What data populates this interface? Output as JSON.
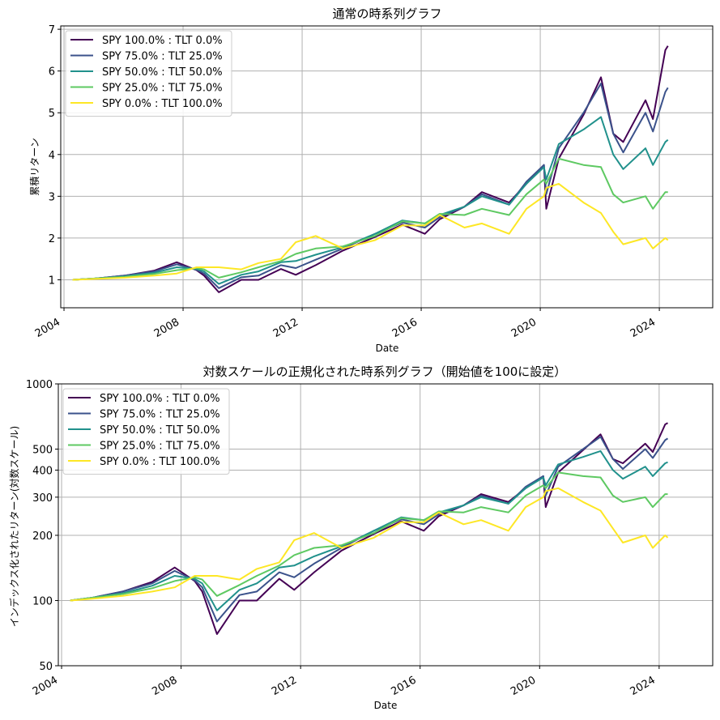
{
  "colors": {
    "series": [
      "#440154",
      "#3b528b",
      "#21918c",
      "#5ec962",
      "#fde725"
    ],
    "grid": "#b0b0b0",
    "axis": "#000000",
    "background": "#ffffff"
  },
  "chart_data": [
    {
      "type": "line",
      "title": "通常の時系列グラフ",
      "xlabel": "Date",
      "ylabel": "累積リターン",
      "xlim": [
        "2003-11-22",
        "2025-10-17"
      ],
      "ylim": [
        0.33,
        7.08
      ],
      "xticks": [
        "2004",
        "2008",
        "2012",
        "2016",
        "2020",
        "2024"
      ],
      "yticks": [
        "1",
        "2",
        "3",
        "4",
        "5",
        "6",
        "7"
      ],
      "yscale": "linear",
      "grid": true,
      "legend_loc": "upper left",
      "x": [
        "2004-04",
        "2005-01",
        "2006-01",
        "2007-01",
        "2007-10",
        "2008-06",
        "2008-09",
        "2009-03",
        "2009-12",
        "2010-07",
        "2011-04",
        "2011-10",
        "2012-06",
        "2013-05",
        "2014-06",
        "2015-05",
        "2016-02",
        "2016-08",
        "2017-06",
        "2018-01",
        "2018-12",
        "2019-07",
        "2020-02",
        "2020-03",
        "2020-08",
        "2021-06",
        "2022-01",
        "2022-06",
        "2022-10",
        "2023-07",
        "2023-10",
        "2024-03",
        "2024-04"
      ],
      "series": [
        {
          "name": "SPY 100.0% : TLT 0.0%",
          "values": [
            1.0,
            1.03,
            1.1,
            1.22,
            1.42,
            1.23,
            1.1,
            0.7,
            1.0,
            1.0,
            1.26,
            1.12,
            1.35,
            1.7,
            2.03,
            2.32,
            2.1,
            2.45,
            2.75,
            3.1,
            2.85,
            3.3,
            3.75,
            2.7,
            3.9,
            4.95,
            5.85,
            4.5,
            4.3,
            5.3,
            4.85,
            6.5,
            6.6
          ]
        },
        {
          "name": "SPY 75.0% : TLT 25.0%",
          "values": [
            1.0,
            1.03,
            1.1,
            1.2,
            1.37,
            1.24,
            1.15,
            0.8,
            1.06,
            1.1,
            1.35,
            1.28,
            1.48,
            1.75,
            2.1,
            2.37,
            2.25,
            2.5,
            2.75,
            3.05,
            2.8,
            3.35,
            3.75,
            3.05,
            4.15,
            5.0,
            5.7,
            4.5,
            4.05,
            5.0,
            4.55,
            5.5,
            5.6
          ]
        },
        {
          "name": "SPY 50.0% : TLT 50.0%",
          "values": [
            1.0,
            1.03,
            1.08,
            1.17,
            1.3,
            1.26,
            1.2,
            0.9,
            1.12,
            1.2,
            1.42,
            1.45,
            1.6,
            1.78,
            2.1,
            2.42,
            2.35,
            2.55,
            2.75,
            3.0,
            2.8,
            3.3,
            3.7,
            3.4,
            4.25,
            4.6,
            4.9,
            4.0,
            3.65,
            4.15,
            3.75,
            4.3,
            4.35
          ]
        },
        {
          "name": "SPY 25.0% : TLT 75.0%",
          "values": [
            1.0,
            1.03,
            1.07,
            1.14,
            1.23,
            1.28,
            1.25,
            1.05,
            1.18,
            1.3,
            1.45,
            1.62,
            1.75,
            1.8,
            2.05,
            2.4,
            2.35,
            2.58,
            2.55,
            2.7,
            2.55,
            3.05,
            3.4,
            3.3,
            3.9,
            3.75,
            3.7,
            3.05,
            2.85,
            3.0,
            2.7,
            3.1,
            3.1
          ]
        },
        {
          "name": "SPY 0.0% : TLT 100.0%",
          "values": [
            1.0,
            1.02,
            1.05,
            1.1,
            1.15,
            1.3,
            1.3,
            1.3,
            1.25,
            1.4,
            1.5,
            1.9,
            2.05,
            1.75,
            1.95,
            2.3,
            2.3,
            2.55,
            2.25,
            2.35,
            2.1,
            2.7,
            3.0,
            3.2,
            3.3,
            2.85,
            2.6,
            2.15,
            1.85,
            2.0,
            1.75,
            2.0,
            1.95
          ]
        }
      ]
    },
    {
      "type": "line",
      "title": "対数スケールの正規化された時系列グラフ（開始値を100に設定）",
      "xlabel": "Date",
      "ylabel": "インデックス化されたリターン(対数スケール)",
      "xlim": [
        "2003-11-22",
        "2025-10-17"
      ],
      "ylim": [
        50,
        1000
      ],
      "xticks": [
        "2004",
        "2008",
        "2012",
        "2016",
        "2020",
        "2024"
      ],
      "yticks": [
        "50",
        "100",
        "200",
        "300",
        "400",
        "500",
        "1000"
      ],
      "yscale": "log",
      "grid": true,
      "legend_loc": "upper left",
      "x": [
        "2004-04",
        "2005-01",
        "2006-01",
        "2007-01",
        "2007-10",
        "2008-06",
        "2008-09",
        "2009-03",
        "2009-12",
        "2010-07",
        "2011-04",
        "2011-10",
        "2012-06",
        "2013-05",
        "2014-06",
        "2015-05",
        "2016-02",
        "2016-08",
        "2017-06",
        "2018-01",
        "2018-12",
        "2019-07",
        "2020-02",
        "2020-03",
        "2020-08",
        "2021-06",
        "2022-01",
        "2022-06",
        "2022-10",
        "2023-07",
        "2023-10",
        "2024-03",
        "2024-04"
      ],
      "series": [
        {
          "name": "SPY 100.0% : TLT 0.0%",
          "values": [
            100,
            103,
            110,
            122,
            142,
            123,
            110,
            70,
            100,
            100,
            126,
            112,
            135,
            170,
            203,
            232,
            210,
            245,
            275,
            310,
            285,
            330,
            375,
            270,
            390,
            495,
            585,
            450,
            430,
            530,
            485,
            650,
            660
          ]
        },
        {
          "name": "SPY 75.0% : TLT 25.0%",
          "values": [
            100,
            103,
            110,
            120,
            137,
            124,
            115,
            80,
            106,
            110,
            135,
            128,
            148,
            175,
            210,
            237,
            225,
            250,
            275,
            305,
            280,
            335,
            375,
            305,
            415,
            500,
            570,
            450,
            405,
            500,
            455,
            550,
            560
          ]
        },
        {
          "name": "SPY 50.0% : TLT 50.0%",
          "values": [
            100,
            103,
            108,
            117,
            130,
            126,
            120,
            90,
            112,
            120,
            142,
            145,
            160,
            178,
            210,
            242,
            235,
            255,
            275,
            300,
            280,
            330,
            370,
            340,
            425,
            460,
            490,
            400,
            365,
            415,
            375,
            430,
            435
          ]
        },
        {
          "name": "SPY 25.0% : TLT 75.0%",
          "values": [
            100,
            103,
            107,
            114,
            123,
            128,
            125,
            105,
            118,
            130,
            145,
            162,
            175,
            180,
            205,
            240,
            235,
            258,
            255,
            270,
            255,
            305,
            340,
            330,
            390,
            375,
            370,
            305,
            285,
            300,
            270,
            310,
            310
          ]
        },
        {
          "name": "SPY 0.0% : TLT 100.0%",
          "values": [
            100,
            102,
            105,
            110,
            115,
            130,
            130,
            130,
            125,
            140,
            150,
            190,
            205,
            175,
            195,
            230,
            230,
            255,
            225,
            235,
            210,
            270,
            300,
            320,
            330,
            285,
            260,
            215,
            185,
            200,
            175,
            200,
            195
          ]
        }
      ]
    }
  ]
}
